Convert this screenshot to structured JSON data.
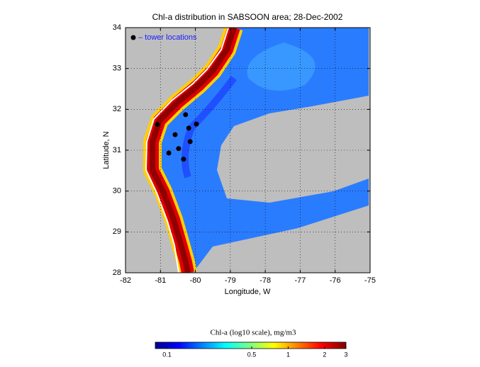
{
  "chart_data": {
    "type": "scatter",
    "title": "Chl-a distribution in SABSOON area; 28-Dec-2002",
    "xlabel": "Longitude, W",
    "ylabel": "Latitude, N",
    "xlim": [
      -82,
      -75
    ],
    "ylim": [
      28,
      34
    ],
    "xticks": [
      -82,
      -81,
      -80,
      -79,
      -78,
      -77,
      -76,
      -75
    ],
    "yticks": [
      28,
      29,
      30,
      31,
      32,
      33,
      34
    ],
    "grid": true,
    "series": [
      {
        "name": "– tower locations",
        "color": "#000000",
        "x": [
          -81.09,
          -80.28,
          -79.97,
          -80.19,
          -80.58,
          -80.15,
          -80.48,
          -80.76,
          -80.34
        ],
        "y": [
          31.63,
          31.87,
          31.64,
          31.54,
          31.38,
          31.21,
          31.04,
          30.93,
          30.78
        ]
      }
    ],
    "colorbar": {
      "label": "Chl-a (log10 scale), mg/m3",
      "scale": "log",
      "lim": [
        0.08,
        3
      ],
      "ticks": [
        0.1,
        0.5,
        1,
        2,
        3
      ]
    }
  }
}
